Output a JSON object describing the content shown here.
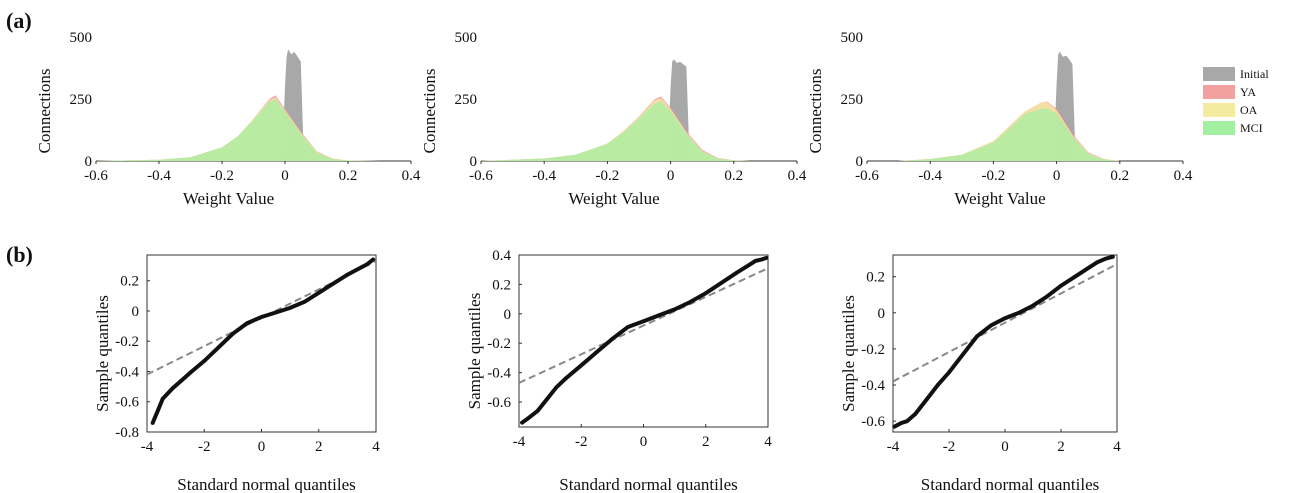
{
  "panel_labels": [
    "(a)",
    "(b)"
  ],
  "legend": [
    {
      "label": "Initial",
      "color": "#a8a8a8"
    },
    {
      "label": "YA",
      "color": "#f2a0a0"
    },
    {
      "label": "OA",
      "color": "#f2eba0"
    },
    {
      "label": "MCI",
      "color": "#a3f0a3"
    }
  ],
  "chart_data": [
    {
      "type": "area",
      "xlabel": "Weight Value",
      "ylabel": "Connections",
      "xlim": [
        -0.6,
        0.4
      ],
      "ylim": [
        0,
        500
      ],
      "xticks": [
        "-0.6",
        "-0.4",
        "-0.2",
        "0",
        "0.2",
        "0.4"
      ],
      "yticks": [
        "0",
        "250",
        "500"
      ],
      "series": [
        {
          "name": "Initial",
          "x": [
            -0.01,
            0.0,
            0.005,
            0.01,
            0.02,
            0.03,
            0.04,
            0.05,
            0.06
          ],
          "y": [
            0,
            300,
            420,
            450,
            430,
            440,
            420,
            400,
            0
          ]
        },
        {
          "name": "YA",
          "x": [
            -0.6,
            -0.4,
            -0.3,
            -0.2,
            -0.15,
            -0.1,
            -0.05,
            -0.03,
            0.0,
            0.05,
            0.1,
            0.15,
            0.2,
            0.3
          ],
          "y": [
            0,
            5,
            15,
            55,
            100,
            170,
            250,
            265,
            210,
            120,
            40,
            10,
            2,
            0
          ]
        },
        {
          "name": "OA",
          "x": [
            -0.6,
            -0.4,
            -0.3,
            -0.2,
            -0.15,
            -0.1,
            -0.05,
            -0.03,
            0.0,
            0.05,
            0.1,
            0.15,
            0.2,
            0.3
          ],
          "y": [
            0,
            5,
            15,
            55,
            100,
            170,
            245,
            255,
            205,
            115,
            38,
            9,
            2,
            0
          ]
        },
        {
          "name": "MCI",
          "x": [
            -0.6,
            -0.4,
            -0.3,
            -0.2,
            -0.15,
            -0.1,
            -0.05,
            -0.03,
            0.0,
            0.05,
            0.1,
            0.15,
            0.2,
            0.3
          ],
          "y": [
            0,
            5,
            15,
            55,
            100,
            165,
            240,
            250,
            200,
            110,
            35,
            8,
            2,
            0
          ]
        }
      ]
    },
    {
      "type": "area",
      "xlabel": "Weight Value",
      "ylabel": "Connections",
      "xlim": [
        -0.6,
        0.4
      ],
      "ylim": [
        0,
        500
      ],
      "xticks": [
        "-0.6",
        "-0.4",
        "-0.2",
        "0",
        "0.2",
        "0.4"
      ],
      "yticks": [
        "0",
        "250",
        "500"
      ],
      "series": [
        {
          "name": "Initial",
          "x": [
            -0.01,
            0.0,
            0.005,
            0.01,
            0.02,
            0.03,
            0.04,
            0.05,
            0.06
          ],
          "y": [
            0,
            300,
            400,
            410,
            395,
            400,
            390,
            380,
            0
          ]
        },
        {
          "name": "YA",
          "x": [
            -0.6,
            -0.5,
            -0.4,
            -0.3,
            -0.2,
            -0.15,
            -0.1,
            -0.05,
            -0.03,
            0.0,
            0.05,
            0.1,
            0.15,
            0.2,
            0.25
          ],
          "y": [
            0,
            5,
            10,
            25,
            70,
            120,
            180,
            250,
            260,
            215,
            120,
            45,
            12,
            3,
            0
          ]
        },
        {
          "name": "OA",
          "x": [
            -0.6,
            -0.5,
            -0.4,
            -0.3,
            -0.2,
            -0.15,
            -0.1,
            -0.05,
            -0.03,
            0.0,
            0.05,
            0.1,
            0.15,
            0.2,
            0.25
          ],
          "y": [
            0,
            5,
            10,
            25,
            70,
            120,
            178,
            245,
            252,
            210,
            115,
            40,
            10,
            2,
            0
          ]
        },
        {
          "name": "MCI",
          "x": [
            -0.6,
            -0.5,
            -0.4,
            -0.3,
            -0.2,
            -0.15,
            -0.1,
            -0.05,
            -0.03,
            0.0,
            0.05,
            0.1,
            0.15,
            0.2,
            0.25
          ],
          "y": [
            0,
            5,
            10,
            25,
            70,
            115,
            172,
            232,
            240,
            200,
            110,
            38,
            9,
            2,
            0
          ]
        }
      ]
    },
    {
      "type": "area",
      "xlabel": "Weight Value",
      "ylabel": "Connections",
      "xlim": [
        -0.6,
        0.4
      ],
      "ylim": [
        0,
        500
      ],
      "xticks": [
        "-0.6",
        "-0.4",
        "-0.2",
        "0",
        "0.2",
        "0.4"
      ],
      "yticks": [
        "0",
        "250",
        "500"
      ],
      "series": [
        {
          "name": "Initial",
          "x": [
            -0.01,
            0.0,
            0.005,
            0.01,
            0.02,
            0.03,
            0.04,
            0.05,
            0.06
          ],
          "y": [
            0,
            310,
            430,
            440,
            420,
            425,
            410,
            390,
            0
          ]
        },
        {
          "name": "YA",
          "x": [
            -0.5,
            -0.4,
            -0.3,
            -0.2,
            -0.15,
            -0.1,
            -0.05,
            -0.03,
            0.0,
            0.05,
            0.1,
            0.15,
            0.2
          ],
          "y": [
            0,
            8,
            25,
            80,
            140,
            200,
            235,
            240,
            210,
            110,
            35,
            8,
            0
          ]
        },
        {
          "name": "OA",
          "x": [
            -0.5,
            -0.4,
            -0.3,
            -0.2,
            -0.15,
            -0.1,
            -0.05,
            -0.03,
            0.0,
            0.05,
            0.1,
            0.15,
            0.2
          ],
          "y": [
            0,
            8,
            25,
            80,
            140,
            200,
            235,
            238,
            205,
            105,
            32,
            7,
            0
          ]
        },
        {
          "name": "MCI",
          "x": [
            -0.5,
            -0.4,
            -0.3,
            -0.2,
            -0.15,
            -0.1,
            -0.05,
            -0.03,
            0.0,
            0.05,
            0.1,
            0.15,
            0.2
          ],
          "y": [
            0,
            8,
            24,
            75,
            130,
            190,
            210,
            212,
            190,
            100,
            30,
            6,
            0
          ]
        }
      ]
    },
    {
      "type": "scatter",
      "xlabel": "Standard normal quantiles",
      "ylabel": "Sample quantiles",
      "xlim": [
        -4,
        4
      ],
      "ylim": [
        -0.8,
        0.37
      ],
      "xticks": [
        "-4",
        "-2",
        "0",
        "2",
        "4"
      ],
      "yticks": [
        "-0.8",
        "-0.6",
        "-0.4",
        "-0.2",
        "0",
        "0.2"
      ],
      "reference_line": {
        "x": [
          -4,
          4
        ],
        "y": [
          -0.42,
          0.33
        ]
      },
      "points": {
        "x": [
          -3.8,
          -3.6,
          -3.45,
          -3.3,
          -3.1,
          -2.8,
          -2.5,
          -2.0,
          -1.5,
          -1.0,
          -0.5,
          0.0,
          0.5,
          1.0,
          1.5,
          2.0,
          2.5,
          3.0,
          3.3,
          3.5,
          3.7,
          3.9
        ],
        "y": [
          -0.74,
          -0.65,
          -0.58,
          -0.55,
          -0.51,
          -0.46,
          -0.41,
          -0.33,
          -0.24,
          -0.15,
          -0.08,
          -0.04,
          -0.01,
          0.02,
          0.06,
          0.12,
          0.18,
          0.24,
          0.27,
          0.29,
          0.31,
          0.34
        ]
      }
    },
    {
      "type": "scatter",
      "xlabel": "Standard normal quantiles",
      "ylabel": "Sample quantiles",
      "xlim": [
        -4,
        4
      ],
      "ylim": [
        -0.77,
        0.4
      ],
      "xticks": [
        "-4",
        "-2",
        "0",
        "2",
        "4"
      ],
      "yticks": [
        "-0.6",
        "-0.4",
        "-0.2",
        "0",
        "0.2",
        "0.4"
      ],
      "reference_line": {
        "x": [
          -4,
          4
        ],
        "y": [
          -0.47,
          0.31
        ]
      },
      "points": {
        "x": [
          -3.9,
          -3.7,
          -3.4,
          -3.1,
          -2.8,
          -2.5,
          -2.0,
          -1.5,
          -1.0,
          -0.5,
          0.0,
          0.5,
          1.0,
          1.5,
          2.0,
          2.5,
          3.0,
          3.3,
          3.6,
          3.8,
          3.95
        ],
        "y": [
          -0.74,
          -0.71,
          -0.66,
          -0.58,
          -0.5,
          -0.44,
          -0.35,
          -0.26,
          -0.17,
          -0.09,
          -0.05,
          -0.01,
          0.03,
          0.08,
          0.14,
          0.21,
          0.28,
          0.32,
          0.36,
          0.37,
          0.38
        ]
      }
    },
    {
      "type": "scatter",
      "xlabel": "Standard normal quantiles",
      "ylabel": "Sample quantiles",
      "xlim": [
        -4,
        4
      ],
      "ylim": [
        -0.66,
        0.32
      ],
      "xticks": [
        "-4",
        "-2",
        "0",
        "2",
        "4"
      ],
      "yticks": [
        "-0.6",
        "-0.4",
        "-0.2",
        "0",
        "0.2"
      ],
      "reference_line": {
        "x": [
          -4,
          4
        ],
        "y": [
          -0.38,
          0.27
        ]
      },
      "points": {
        "x": [
          -3.95,
          -3.7,
          -3.5,
          -3.2,
          -2.8,
          -2.4,
          -2.0,
          -1.5,
          -1.0,
          -0.5,
          0.0,
          0.5,
          1.0,
          1.5,
          2.0,
          2.5,
          3.0,
          3.3,
          3.6,
          3.85
        ],
        "y": [
          -0.63,
          -0.61,
          -0.6,
          -0.56,
          -0.48,
          -0.4,
          -0.33,
          -0.23,
          -0.13,
          -0.07,
          -0.03,
          0.0,
          0.04,
          0.09,
          0.15,
          0.2,
          0.25,
          0.28,
          0.3,
          0.31
        ]
      }
    }
  ]
}
